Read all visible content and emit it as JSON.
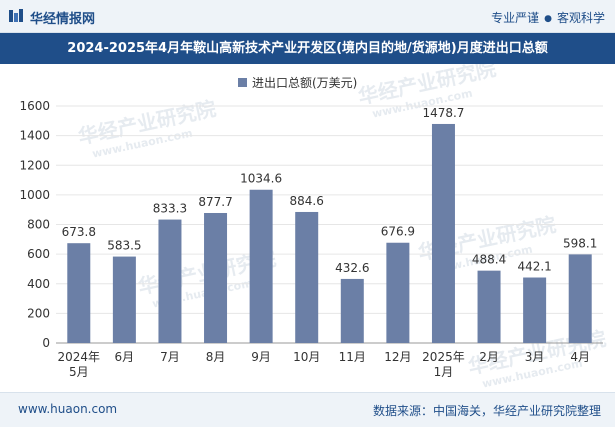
{
  "header": {
    "site_name": "华经情报网",
    "tagline_left": "专业严谨",
    "tagline_right": "客观科学"
  },
  "title": "2024-2025年4月年鞍山高新技术产业开发区(境内目的地/货源地)月度进出口总额",
  "footer": {
    "url": "www.huaon.com",
    "source": "数据来源：中国海关，华经产业研究院整理"
  },
  "watermark": {
    "text": "华经产业研究院",
    "url": "www.huaon.com"
  },
  "colors": {
    "bar": "#6b7fa6",
    "brand": "#1f4e89",
    "grid": "#e6e6e6",
    "axis": "#999999"
  },
  "chart_data": {
    "type": "bar",
    "title": "2024-2025年4月年鞍山高新技术产业开发区(境内目的地/货源地)月度进出口总额",
    "legend": "进出口总额(万美元)",
    "legend_position": "top-center",
    "categories": [
      "2024年\n5月",
      "6月",
      "7月",
      "8月",
      "9月",
      "10月",
      "11月",
      "12月",
      "2025年\n1月",
      "2月",
      "3月",
      "4月"
    ],
    "values": [
      673.8,
      583.5,
      833.3,
      877.7,
      1034.6,
      884.6,
      432.6,
      676.9,
      1478.7,
      488.4,
      442.1,
      598.1
    ],
    "value_labels": [
      "673.8",
      "583.5",
      "833.3",
      "877.7",
      "1034.6",
      "884.6",
      "432.6",
      "676.9",
      "1478.7",
      "488.4",
      "442.1",
      "598.1"
    ],
    "yticks": [
      0,
      200,
      400,
      600,
      800,
      1000,
      1200,
      1400,
      1600
    ],
    "ylim": [
      0,
      1600
    ],
    "xlabel": "",
    "ylabel": "",
    "grid": true
  }
}
